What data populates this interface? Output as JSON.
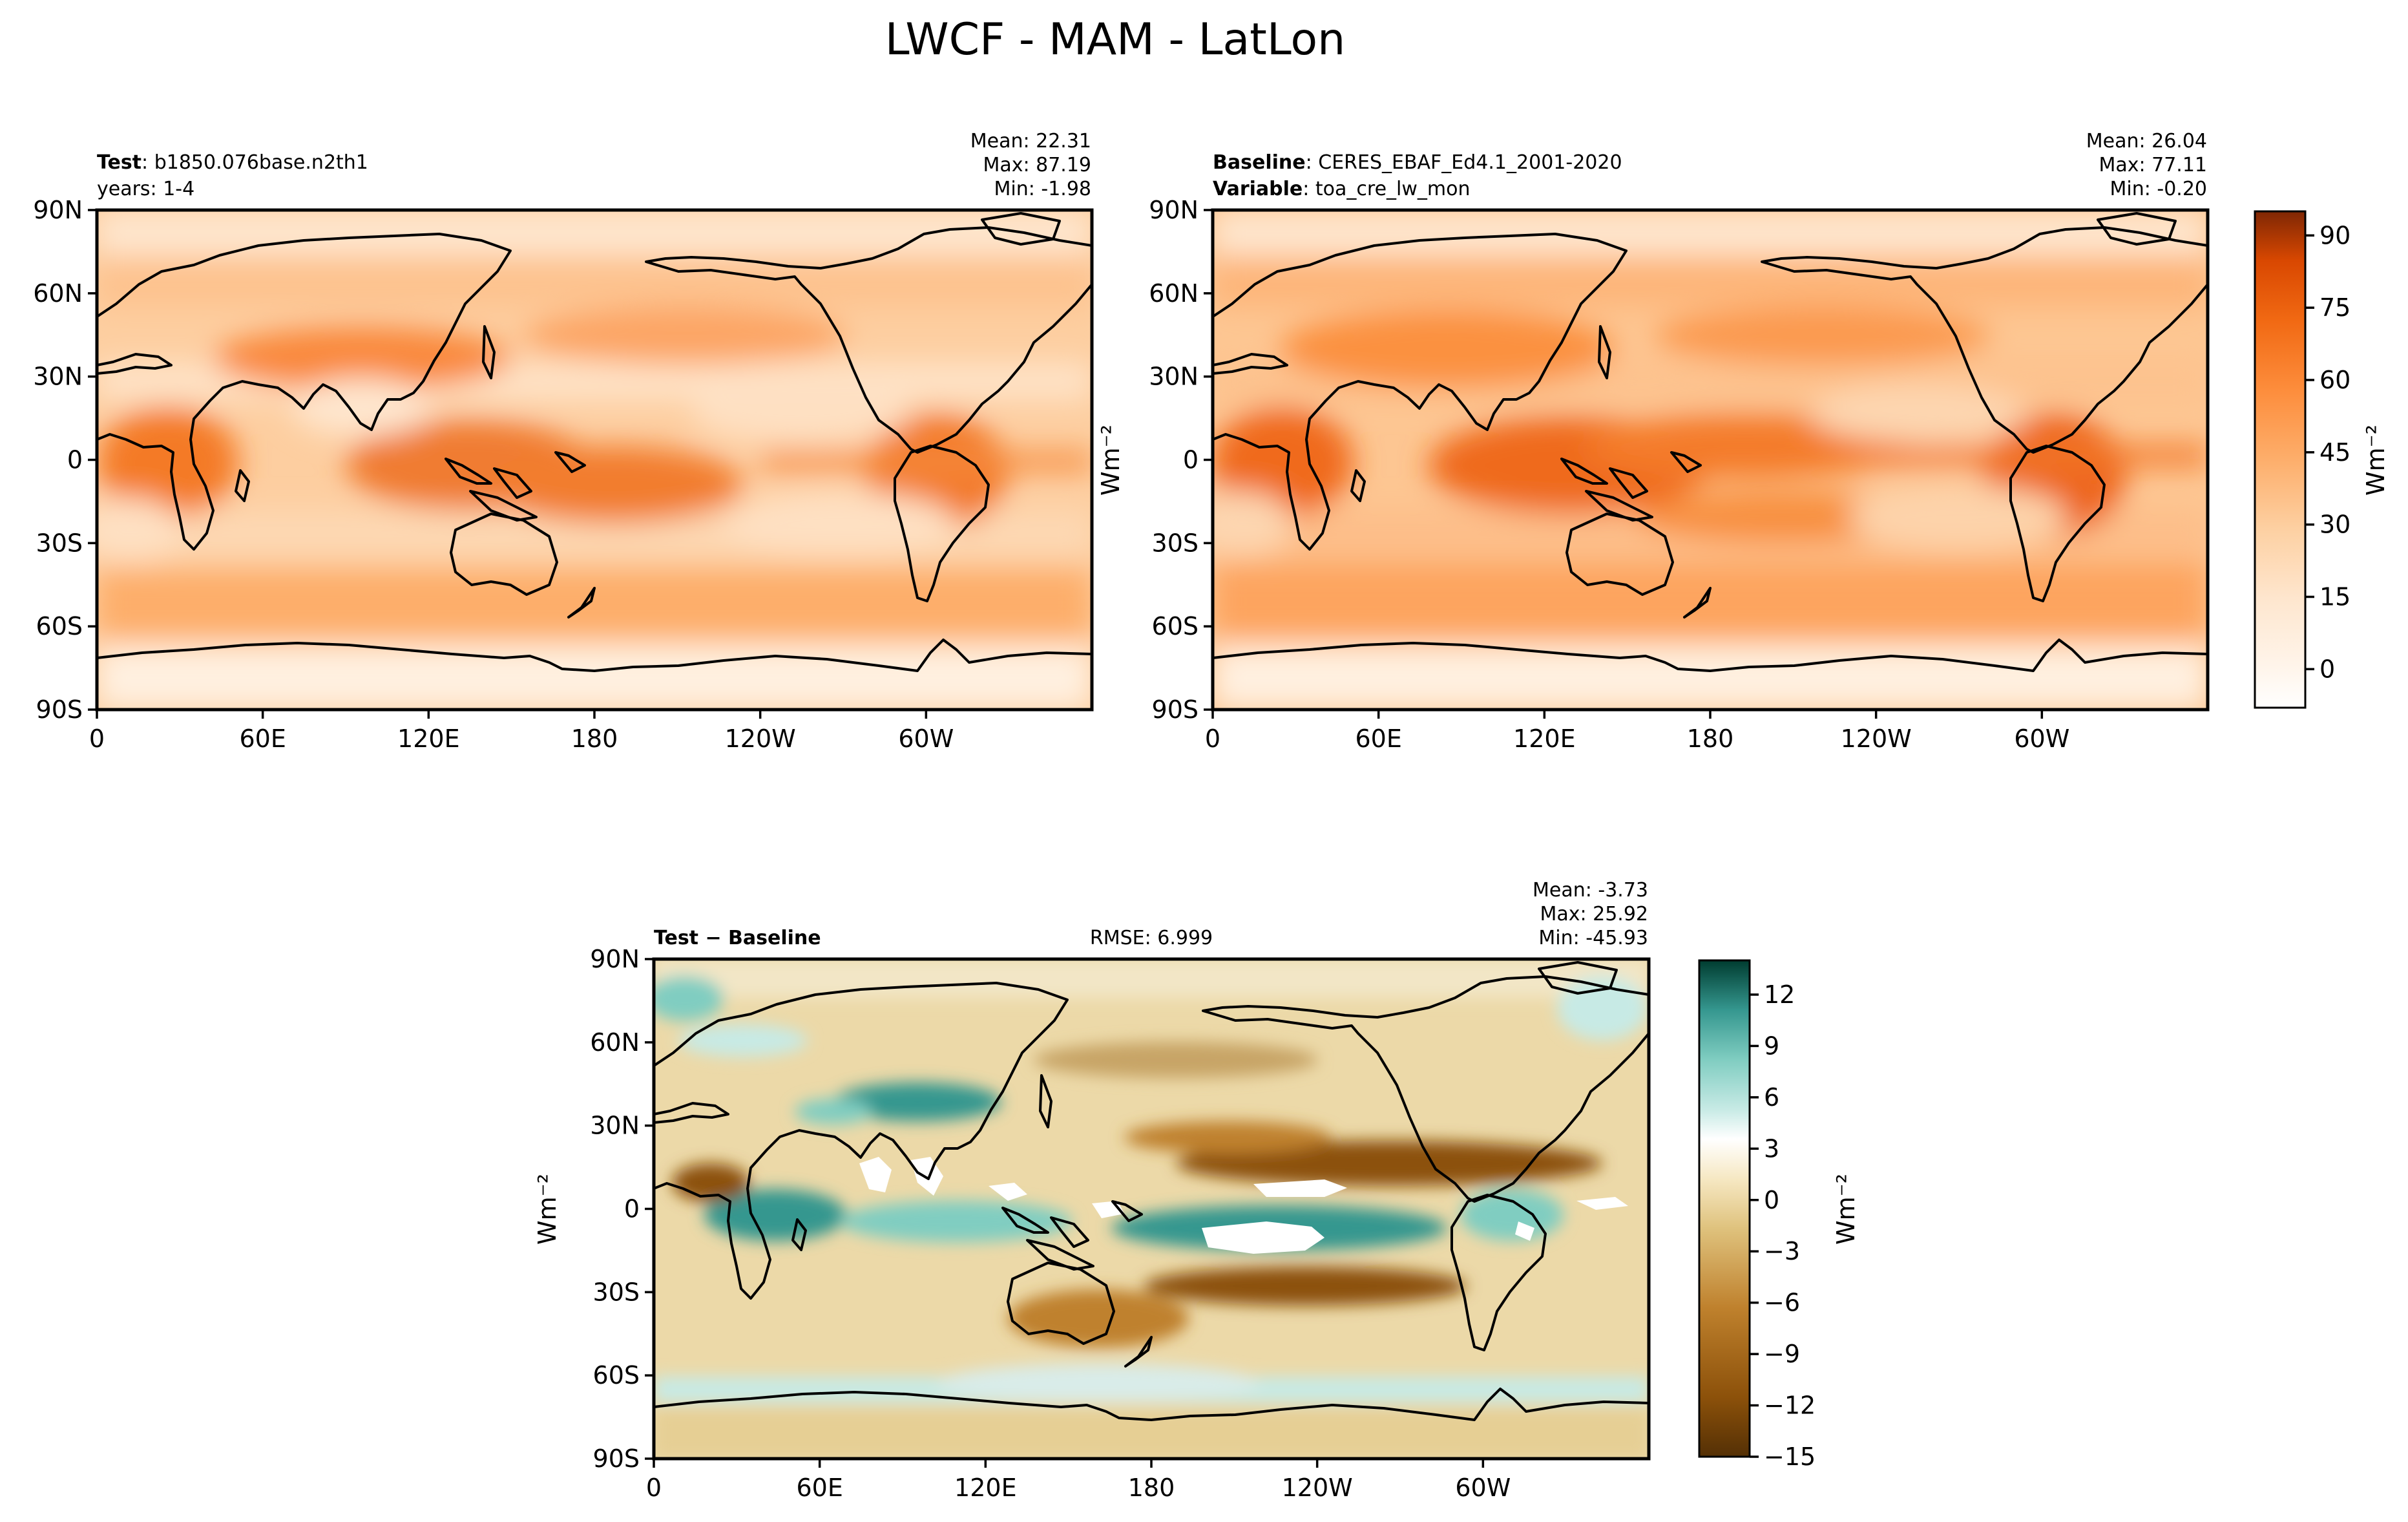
{
  "figure_title": "LWCF - MAM - LatLon",
  "chart_data": [
    {
      "type": "heatmap",
      "panel": "test",
      "title_bold": "Test",
      "title_text": "b1850.076base.n2th1",
      "title_line2": "years: 1-4",
      "title_center": "",
      "stats": [
        "Mean: 22.31",
        "Max: 87.19",
        "Min: -1.98"
      ],
      "xticks": [
        "0",
        "60E",
        "120E",
        "180",
        "120W",
        "60W"
      ],
      "yticks": [
        "90N",
        "60N",
        "30N",
        "0",
        "30S",
        "60S",
        "90S"
      ],
      "ylabel": "",
      "colormap": "Oranges",
      "vmin": -8,
      "vmax": 95
    },
    {
      "type": "heatmap",
      "panel": "baseline",
      "title_bold": "Baseline",
      "title_text": "CERES_EBAF_Ed4.1_2001-2020",
      "title_bold2": "Variable",
      "title_text2": "toa_cre_lw_mon",
      "title_center": "",
      "stats": [
        "Mean: 26.04",
        "Max: 77.11",
        "Min: -0.20"
      ],
      "xticks": [
        "0",
        "60E",
        "120E",
        "180",
        "120W",
        "60W"
      ],
      "yticks": [
        "90N",
        "60N",
        "30N",
        "0",
        "30S",
        "60S",
        "90S"
      ],
      "ylabel": "Wm⁻²",
      "colorbar": {
        "ticks": [
          "90",
          "75",
          "60",
          "45",
          "30",
          "15",
          "0"
        ],
        "label": "Wm⁻²"
      },
      "colormap": "Oranges",
      "vmin": -8,
      "vmax": 95
    },
    {
      "type": "heatmap",
      "panel": "difference",
      "title_bold": "Test − Baseline",
      "title_text": "",
      "title_center": "RMSE: 6.999",
      "stats": [
        "Mean: -3.73",
        "Max: 25.92",
        "Min: -45.93"
      ],
      "xticks": [
        "0",
        "60E",
        "120E",
        "180",
        "120W",
        "60W"
      ],
      "yticks": [
        "90N",
        "60N",
        "30N",
        "0",
        "30S",
        "60S",
        "90S"
      ],
      "ylabel": "Wm⁻²",
      "colorbar": {
        "ticks": [
          "12",
          "9",
          "6",
          "3",
          "0",
          "−3",
          "−6",
          "−9",
          "−12",
          "−15"
        ],
        "label": "Wm⁻²"
      },
      "colormap": "BrBG",
      "vmin": -15,
      "vmax": 14
    }
  ],
  "colors": {
    "orange_low": "#fff5eb",
    "orange_high": "#7f2704",
    "diff_brown": "#543005",
    "diff_teal": "#003c30"
  }
}
